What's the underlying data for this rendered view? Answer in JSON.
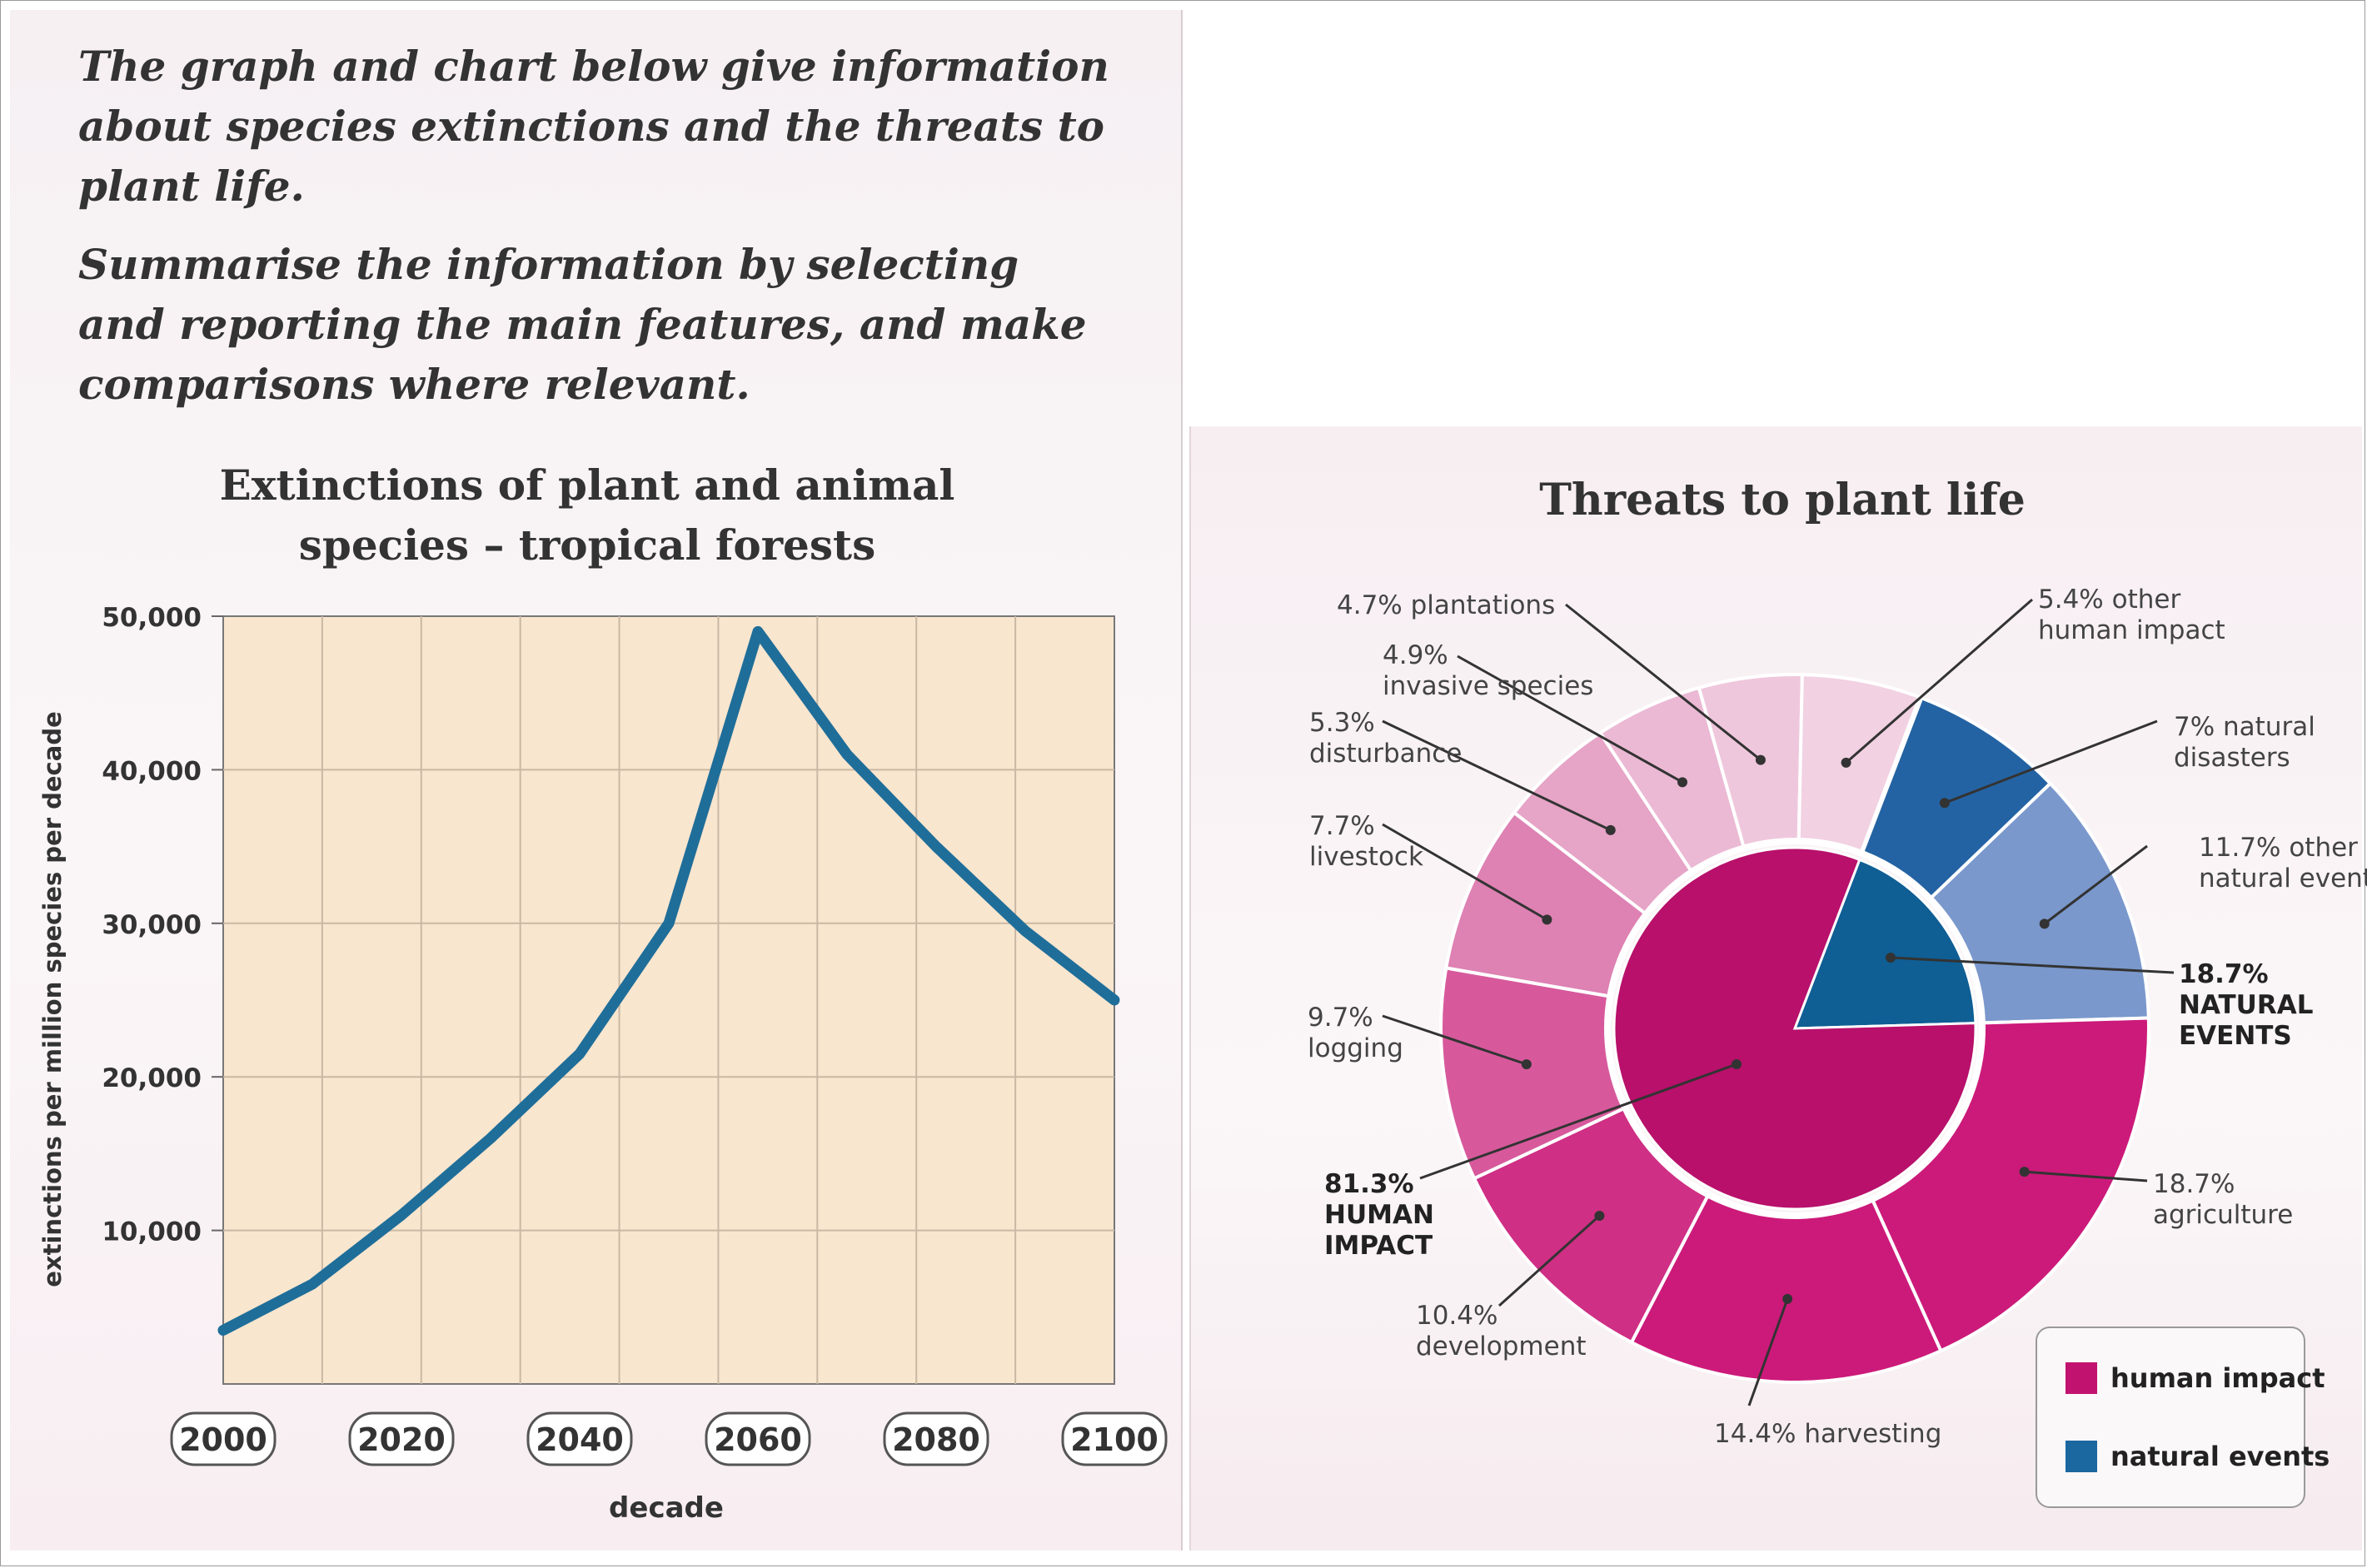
{
  "prompt": {
    "line1": "The graph and chart below give information about species extinctions and the threats to plant life.",
    "line2": "Summarise the information by selecting and reporting the main features, and make comparisons where relevant."
  },
  "chart_data": [
    {
      "type": "line",
      "title": "Extinctions of plant and animal species – tropical forests",
      "title_lines": [
        "Extinctions of plant and animal",
        "species – tropical forests"
      ],
      "xlabel": "decade",
      "ylabel": "extinctions per million species per decade",
      "x_ticks": [
        "2000",
        "2020",
        "2040",
        "2060",
        "2080",
        "2100"
      ],
      "y_ticks": [
        "10,000",
        "20,000",
        "30,000",
        "40,000",
        "50,000"
      ],
      "xlim": [
        2000,
        2100
      ],
      "ylim": [
        0,
        50000
      ],
      "grid": true,
      "color": "#1f6e99",
      "x": [
        2000,
        2010,
        2020,
        2030,
        2040,
        2050,
        2060,
        2070,
        2080,
        2090,
        2100
      ],
      "values": [
        3500,
        6500,
        11000,
        16000,
        21500,
        30000,
        49000,
        41000,
        35000,
        29500,
        25000
      ]
    },
    {
      "type": "pie",
      "title": "Threats to plant life",
      "inner": [
        {
          "value": 81.3,
          "label": "81.3% HUMAN IMPACT",
          "label_lines": [
            "81.3%",
            "HUMAN",
            "IMPACT"
          ],
          "group": "human"
        },
        {
          "value": 18.7,
          "label": "18.7% NATURAL EVENTS",
          "label_lines": [
            "18.7%",
            "NATURAL",
            "EVENTS"
          ],
          "group": "natural"
        }
      ],
      "outer": [
        {
          "value": 7,
          "label": "7% natural disasters",
          "label_lines": [
            "7% natural",
            "disasters"
          ],
          "group": "natural"
        },
        {
          "value": 11.7,
          "label": "11.7% other natural events",
          "label_lines": [
            "11.7% other",
            "natural events"
          ],
          "group": "natural"
        },
        {
          "value": 18.7,
          "label": "18.7% agriculture",
          "label_lines": [
            "18.7%",
            "agriculture"
          ],
          "group": "human"
        },
        {
          "value": 14.4,
          "label": "14.4% harvesting",
          "label_lines": [
            "14.4% harvesting"
          ],
          "group": "human"
        },
        {
          "value": 10.4,
          "label": "10.4% development",
          "label_lines": [
            "10.4%",
            "development"
          ],
          "group": "human"
        },
        {
          "value": 9.7,
          "label": "9.7% logging",
          "label_lines": [
            "9.7%",
            "logging"
          ],
          "group": "human"
        },
        {
          "value": 7.7,
          "label": "7.7% livestock",
          "label_lines": [
            "7.7%",
            "livestock"
          ],
          "group": "human"
        },
        {
          "value": 5.3,
          "label": "5.3% disturbance",
          "label_lines": [
            "5.3%",
            "disturbance"
          ],
          "group": "human"
        },
        {
          "value": 4.9,
          "label": "4.9% invasive species",
          "label_lines": [
            "4.9%",
            "invasive species"
          ],
          "group": "human"
        },
        {
          "value": 4.7,
          "label": "4.7% plantations",
          "label_lines": [
            "4.7% plantations"
          ],
          "group": "human"
        },
        {
          "value": 5.4,
          "label": "5.4% other human impact",
          "label_lines": [
            "5.4% other",
            "human impact"
          ],
          "group": "human"
        }
      ],
      "legend": [
        {
          "label": "human impact",
          "color": "#c2126f"
        },
        {
          "label": "natural events",
          "color": "#1b67a0"
        }
      ],
      "legend_position": "bottom-right",
      "colors": {
        "inner_human": "#b8106b",
        "inner_natural": "#0f5e94",
        "outer": [
          "#2463a3",
          "#7a98cc",
          "#cc1a7a",
          "#cc1a7a",
          "#cf2f84",
          "#d7599c",
          "#de81b3",
          "#e6a4c7",
          "#ebb9d4",
          "#efc7dc",
          "#f1d1e2"
        ]
      }
    }
  ]
}
